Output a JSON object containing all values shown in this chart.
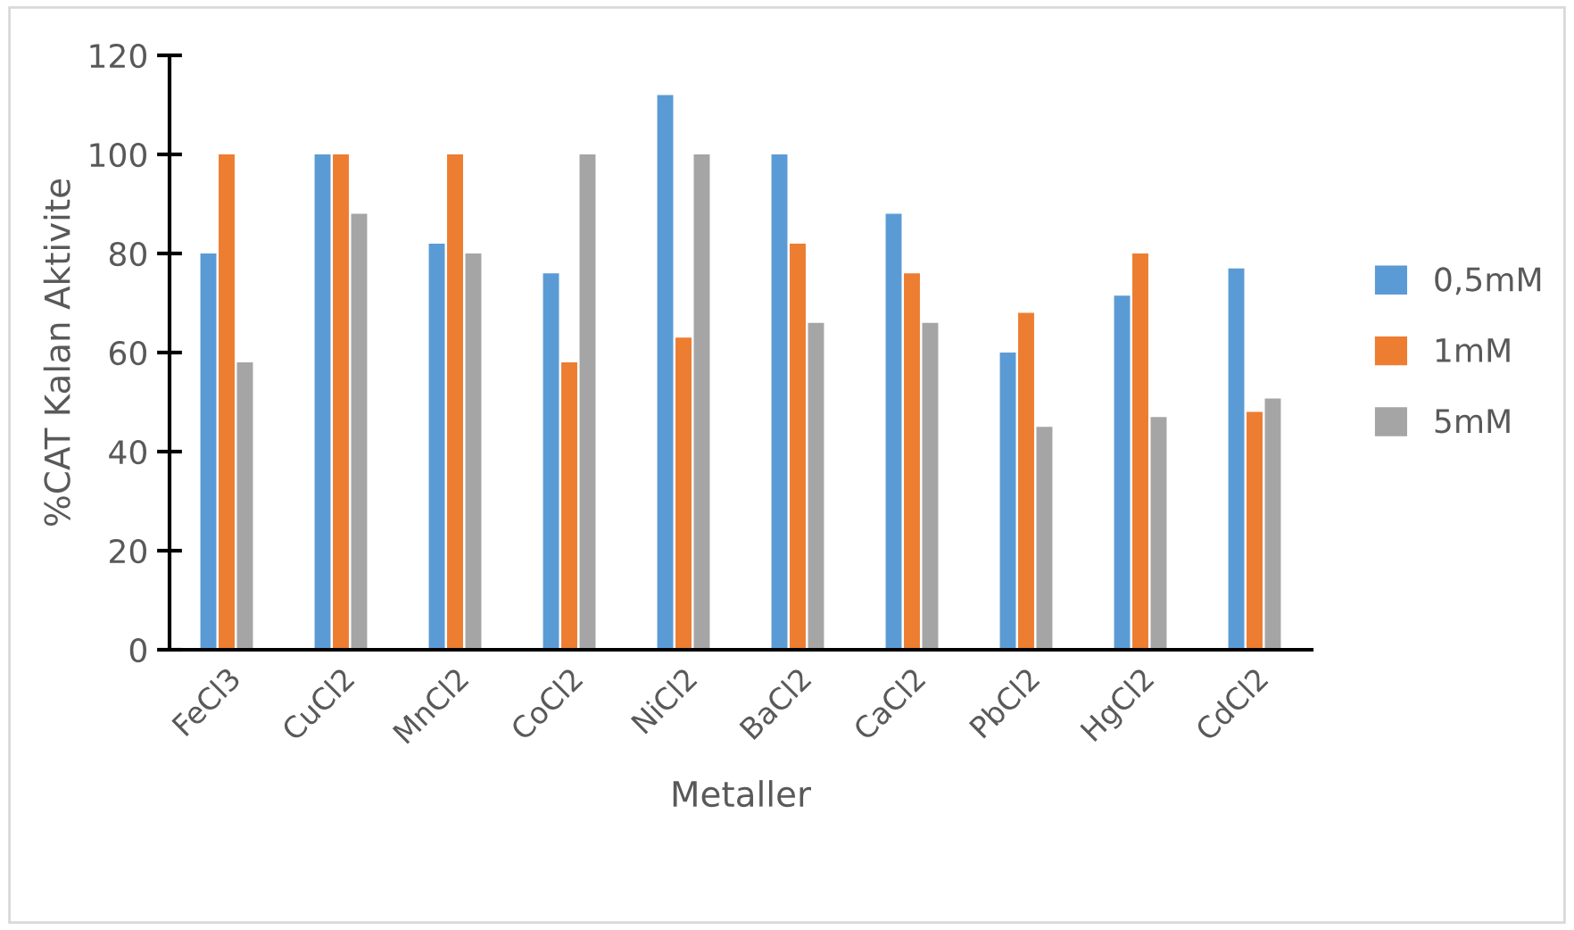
{
  "chart_data": {
    "type": "bar",
    "xlabel": "Metaller",
    "ylabel": "%CAT Kalan Aktivite",
    "categories": [
      "FeCl3",
      "CuCl2",
      "MnCl2",
      "CoCl2",
      "NiCl2",
      "BaCl2",
      "CaCl2",
      "PbCl2",
      "HgCl2",
      "CdCl2"
    ],
    "series": [
      {
        "name": "0,5mM",
        "color": "#5b9bd5",
        "values": [
          80,
          100,
          82,
          76,
          112,
          100,
          88,
          60,
          71.5,
          77
        ]
      },
      {
        "name": "1mM",
        "color": "#ed7d31",
        "values": [
          100,
          100,
          100,
          58,
          63,
          82,
          76,
          68,
          80,
          48
        ]
      },
      {
        "name": "5mM",
        "color": "#a5a5a5",
        "values": [
          58,
          88,
          80,
          100,
          100,
          66,
          66,
          45,
          47,
          50.7
        ]
      }
    ],
    "ylim": [
      0,
      120
    ],
    "yticks": [
      0,
      20,
      40,
      60,
      80,
      100,
      120
    ],
    "grid": false,
    "legend": "right"
  }
}
